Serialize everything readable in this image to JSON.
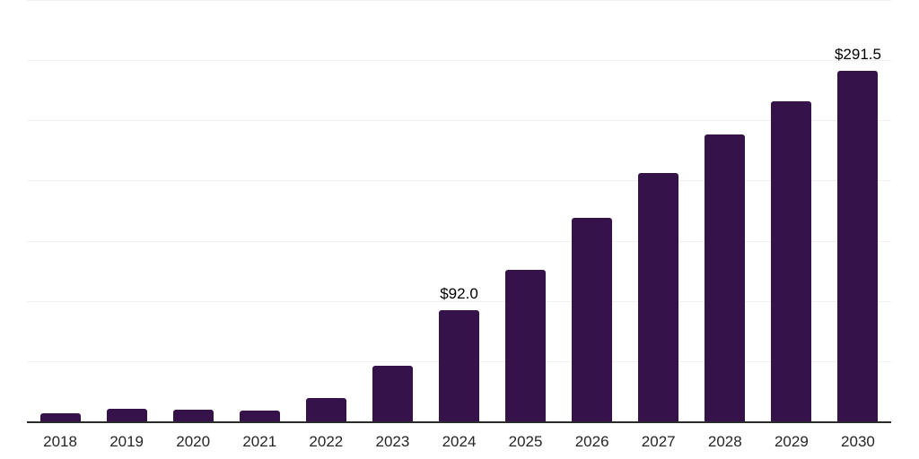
{
  "chart_data": {
    "type": "bar",
    "title": "",
    "xlabel": "",
    "ylabel": "",
    "categories": [
      "2018",
      "2019",
      "2020",
      "2021",
      "2022",
      "2023",
      "2024",
      "2025",
      "2026",
      "2027",
      "2028",
      "2029",
      "2030"
    ],
    "values": [
      6.9,
      10.1,
      9.6,
      9.3,
      19.1,
      46.0,
      92.0,
      125.5,
      169.0,
      206.5,
      238.5,
      266.0,
      291.5
    ],
    "data_labels": [
      {
        "index": 6,
        "text": "$92.0"
      },
      {
        "index": 12,
        "text": "$291.5"
      }
    ],
    "ylim": [
      0,
      350
    ],
    "grid_interval": 50,
    "grid": "horizontal-only",
    "y_tick_labels_visible": false,
    "legend": "none",
    "colors": {
      "bar": "#36124a",
      "axis": "#2b2b2b",
      "gridline": "#f0f0f0",
      "tick_label": "#262626",
      "value_label": "#000000",
      "background": "#ffffff"
    }
  }
}
